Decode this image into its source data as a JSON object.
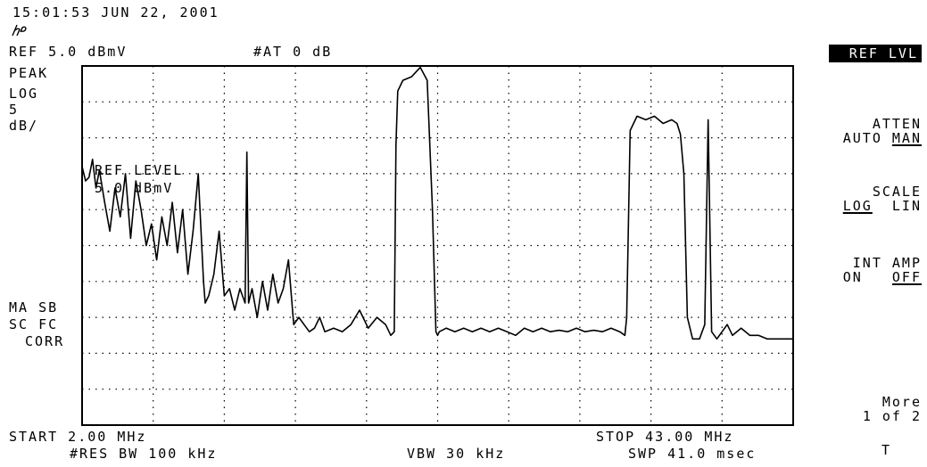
{
  "header": {
    "timestamp": "15:01:53 JUN 22, 2001",
    "logo_text": "hp",
    "ref_level": "REF 5.0 dBmV",
    "attenuation": "#AT 0 dB"
  },
  "left_annotations": {
    "detector": "PEAK",
    "scale_type": "LOG",
    "scale_value": "5",
    "scale_unit": "dB/",
    "flags_line1": "MA SB",
    "flags_line2": "SC FC",
    "flags_line3": "CORR"
  },
  "active_function": {
    "line1": "REF LEVEL",
    "line2": "5.0 dBmV"
  },
  "footer": {
    "start": "START 2.00 MHz",
    "stop": "STOP 43.00 MHz",
    "rbw": "#RES BW 100 kHz",
    "vbw": "VBW 30 kHz",
    "sweep": "SWP 41.0 msec"
  },
  "softkeys": {
    "ref_lvl": "REF LVL",
    "atten_title": "ATTEN",
    "atten_auto": "AUTO",
    "atten_man": "MAN",
    "scale_title": "SCALE",
    "scale_log": "LOG",
    "scale_lin": "LIN",
    "int_amp_title": "INT AMP",
    "int_amp_on": "ON",
    "int_amp_off": "OFF",
    "more": "More",
    "page": "1 of 2",
    "trace_marker": "T"
  },
  "chart_data": {
    "type": "line",
    "xlabel": "",
    "ylabel": "",
    "xlim": [
      2.0,
      43.0
    ],
    "ylim": [
      -45.0,
      5.0
    ],
    "grid": true,
    "x_unit": "MHz",
    "y_unit": "dBmV",
    "series": [
      {
        "x": [
          2.0,
          2.2,
          2.4,
          2.6,
          2.8,
          3.0,
          3.3,
          3.6,
          3.9,
          4.2,
          4.5,
          4.8,
          5.1,
          5.4,
          5.7,
          6.0,
          6.3,
          6.6,
          6.9,
          7.2,
          7.5,
          7.8,
          8.1,
          8.4,
          8.7,
          8.9,
          9.0,
          9.1,
          9.3,
          9.6,
          9.9,
          10.2,
          10.5,
          10.8,
          11.1,
          11.4,
          11.5,
          11.6,
          11.8,
          12.1,
          12.4,
          12.7,
          13.0,
          13.3,
          13.6,
          13.9,
          14.2,
          14.5,
          14.8,
          15.1,
          15.4,
          15.7,
          16.0,
          16.5,
          17.0,
          17.5,
          18.0,
          18.5,
          19.0,
          19.5,
          19.8,
          20.0,
          20.1,
          20.2,
          20.5,
          21.0,
          21.5,
          21.9,
          22.2,
          22.4,
          22.5,
          22.6,
          23.0,
          23.5,
          24.0,
          24.5,
          25.0,
          25.5,
          26.0,
          26.5,
          27.0,
          27.5,
          28.0,
          28.5,
          29.0,
          29.5,
          30.0,
          30.5,
          31.0,
          31.5,
          32.0,
          32.5,
          33.0,
          33.3,
          33.4,
          33.6,
          34.0,
          34.5,
          35.0,
          35.5,
          36.0,
          36.3,
          36.5,
          36.7,
          36.9,
          37.2,
          37.6,
          37.9,
          38.1,
          38.3,
          38.6,
          38.9,
          39.2,
          39.5,
          40.0,
          40.5,
          41.0,
          41.5,
          42.0,
          42.5,
          43.0
        ],
        "y": [
          -9.0,
          -11.0,
          -10.5,
          -8.0,
          -12.0,
          -9.5,
          -14.0,
          -18.0,
          -12.0,
          -16.0,
          -10.0,
          -19.0,
          -11.0,
          -15.0,
          -20.0,
          -17.0,
          -22.0,
          -16.0,
          -20.0,
          -14.0,
          -21.0,
          -15.0,
          -24.0,
          -18.0,
          -10.0,
          -20.0,
          -25.0,
          -28.0,
          -27.0,
          -24.0,
          -18.0,
          -27.0,
          -26.0,
          -29.0,
          -26.0,
          -28.0,
          -7.0,
          -28.0,
          -26.0,
          -30.0,
          -25.0,
          -29.0,
          -24.0,
          -28.0,
          -26.0,
          -22.0,
          -31.0,
          -30.0,
          -31.0,
          -32.0,
          -31.5,
          -30.0,
          -32.0,
          -31.5,
          -32.0,
          -31.0,
          -29.0,
          -31.5,
          -30.0,
          -31.0,
          -32.5,
          -32.0,
          -6.0,
          1.5,
          3.0,
          3.5,
          4.8,
          3.0,
          -15.0,
          -32.0,
          -32.5,
          -32.0,
          -31.5,
          -32.0,
          -31.5,
          -32.0,
          -31.5,
          -32.0,
          -31.5,
          -32.0,
          -32.5,
          -31.5,
          -32.0,
          -31.5,
          -32.0,
          -31.8,
          -32.0,
          -31.5,
          -32.0,
          -31.8,
          -32.0,
          -31.5,
          -32.0,
          -32.5,
          -30.0,
          -4.0,
          -2.0,
          -2.5,
          -2.0,
          -3.0,
          -2.5,
          -3.0,
          -4.5,
          -10.0,
          -30.0,
          -33.0,
          -33.0,
          -31.0,
          -2.5,
          -32.0,
          -33.0,
          -32.0,
          -31.0,
          -32.5,
          -31.5,
          -32.5,
          -32.5,
          -33.0,
          -33.0,
          -33.0,
          -33.0
        ]
      }
    ]
  }
}
